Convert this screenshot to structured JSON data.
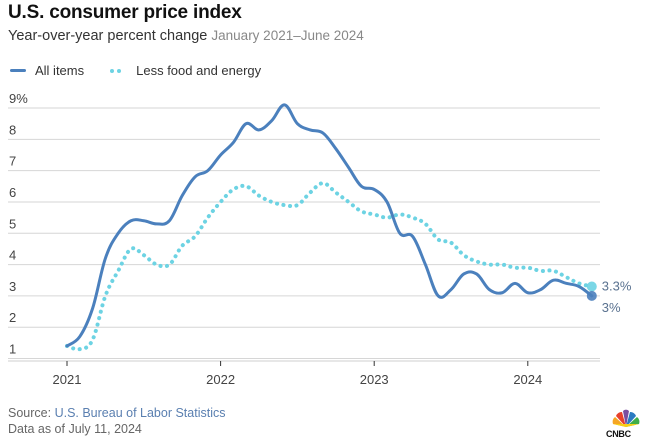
{
  "chart_data": {
    "type": "line",
    "title": "U.S. consumer price index",
    "subtitle": "Year-over-year percent change",
    "date_range": "January 2021–June 2024",
    "xlabel": "",
    "ylabel": "",
    "ylim": [
      1,
      9
    ],
    "y_ticks": [
      "9%",
      "8",
      "7",
      "6",
      "5",
      "4",
      "3",
      "2",
      "1"
    ],
    "y_tick_values": [
      9,
      8,
      7,
      6,
      5,
      4,
      3,
      2,
      1
    ],
    "x_ticks": [
      "2021",
      "2022",
      "2023",
      "2024"
    ],
    "x_start": "2021-01",
    "x_end": "2024-06",
    "grid": true,
    "legend_position": "top-left",
    "series": [
      {
        "name": "All items",
        "style": "solid",
        "color": "#4b80bd",
        "end_label": "3%",
        "values": [
          1.4,
          1.7,
          2.6,
          4.2,
          5.0,
          5.4,
          5.4,
          5.3,
          5.4,
          6.2,
          6.8,
          7.0,
          7.5,
          7.9,
          8.5,
          8.3,
          8.6,
          9.1,
          8.5,
          8.3,
          8.2,
          7.7,
          7.1,
          6.5,
          6.4,
          6.0,
          5.0,
          4.9,
          4.0,
          3.0,
          3.2,
          3.7,
          3.7,
          3.2,
          3.1,
          3.4,
          3.1,
          3.2,
          3.5,
          3.4,
          3.3,
          3.0
        ]
      },
      {
        "name": "Less food and energy",
        "style": "dotted",
        "color": "#6dd3e3",
        "end_label": "3.3%",
        "values": [
          1.4,
          1.3,
          1.6,
          3.0,
          3.8,
          4.5,
          4.3,
          4.0,
          4.0,
          4.6,
          4.9,
          5.5,
          6.0,
          6.4,
          6.5,
          6.2,
          6.0,
          5.9,
          5.9,
          6.3,
          6.6,
          6.3,
          6.0,
          5.7,
          5.6,
          5.5,
          5.6,
          5.5,
          5.3,
          4.8,
          4.7,
          4.3,
          4.1,
          4.0,
          4.0,
          3.9,
          3.9,
          3.8,
          3.8,
          3.6,
          3.4,
          3.3
        ]
      }
    ]
  },
  "footer": {
    "source_prefix": "Source: ",
    "source_link": "U.S. Bureau of Labor Statistics",
    "as_of": "Data as of July 11, 2024",
    "logo_text": "CNBC"
  }
}
